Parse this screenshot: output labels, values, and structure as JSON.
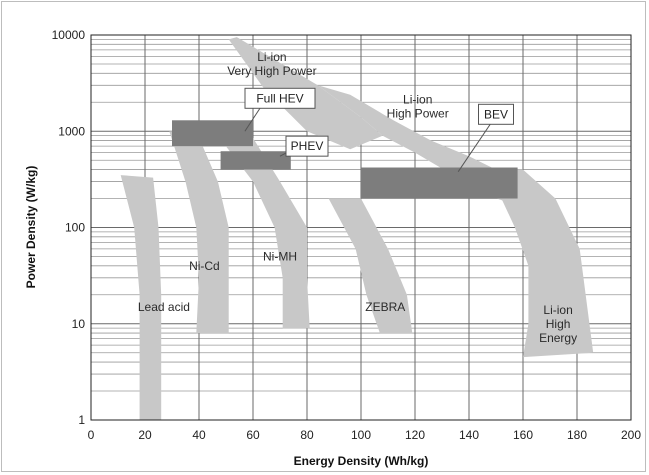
{
  "chart_data": {
    "type": "area",
    "xlabel": "Energy Density (Wh/kg)",
    "ylabel": "Power Density (W/kg)",
    "xlim": [
      0,
      200
    ],
    "ylim": [
      1,
      10000
    ],
    "yscale": "log",
    "grid": true,
    "x_ticks": [
      "0",
      "20",
      "40",
      "60",
      "80",
      "100",
      "120",
      "140",
      "160",
      "180",
      "200"
    ],
    "y_ticks": [
      "1",
      "10",
      "100",
      "1000",
      "10000"
    ],
    "regions": [
      {
        "name": "lead-acid",
        "label_lines": [
          "Lead acid"
        ],
        "label_at": [
          27,
          15
        ],
        "fill": "#c8c8c8",
        "polygon": [
          [
            11,
            350
          ],
          [
            23,
            330
          ],
          [
            25,
            100
          ],
          [
            26,
            20
          ],
          [
            26,
            1
          ],
          [
            18,
            1
          ],
          [
            18,
            20
          ],
          [
            16,
            100
          ],
          [
            11,
            350
          ]
        ]
      },
      {
        "name": "ni-cd",
        "label_lines": [
          "Ni-Cd"
        ],
        "label_at": [
          42,
          40
        ],
        "fill": "#c8c8c8",
        "polygon": [
          [
            29,
            1000
          ],
          [
            39,
            1000
          ],
          [
            47,
            300
          ],
          [
            51,
            100
          ],
          [
            51,
            30
          ],
          [
            51,
            8
          ],
          [
            39,
            8
          ],
          [
            40,
            30
          ],
          [
            39,
            100
          ],
          [
            35,
            300
          ],
          [
            29,
            1000
          ]
        ]
      },
      {
        "name": "ni-mh",
        "label_lines": [
          "Ni-MH"
        ],
        "label_at": [
          70,
          50
        ],
        "fill": "#c8c8c8",
        "polygon": [
          [
            47,
            900
          ],
          [
            60,
            850
          ],
          [
            70,
            300
          ],
          [
            80,
            100
          ],
          [
            80,
            30
          ],
          [
            81,
            9
          ],
          [
            71,
            9
          ],
          [
            71,
            30
          ],
          [
            68,
            100
          ],
          [
            60,
            300
          ],
          [
            47,
            900
          ]
        ]
      },
      {
        "name": "zebra",
        "label_lines": [
          "ZEBRA"
        ],
        "label_at": [
          109,
          15
        ],
        "fill": "#c8c8c8",
        "polygon": [
          [
            88,
            200
          ],
          [
            100,
            200
          ],
          [
            110,
            60
          ],
          [
            117,
            20
          ],
          [
            119,
            8
          ],
          [
            107,
            8
          ],
          [
            102,
            20
          ],
          [
            98,
            60
          ],
          [
            88,
            200
          ]
        ]
      },
      {
        "name": "li-ion-very-high-power",
        "label_lines": [
          "Li-ion",
          "Very High Power"
        ],
        "label_at": [
          67,
          5000
        ],
        "fill": "#c8c8c8",
        "polygon": [
          [
            51,
            9000
          ],
          [
            54,
            9500
          ],
          [
            84,
            3000
          ],
          [
            100,
            1400
          ],
          [
            108,
            900
          ],
          [
            96,
            650
          ],
          [
            80,
            1000
          ],
          [
            64,
            2800
          ],
          [
            51,
            9000
          ]
        ]
      },
      {
        "name": "li-ion-high-power",
        "label_lines": [
          "Li-ion",
          "High Power"
        ],
        "label_at": [
          121,
          1800
        ],
        "fill": "#c8c8c8",
        "polygon": [
          [
            84,
            3000
          ],
          [
            100,
            1400
          ],
          [
            108,
            900
          ],
          [
            120,
            600
          ],
          [
            132,
            380
          ],
          [
            146,
            220
          ],
          [
            155,
            180
          ],
          [
            160,
            260
          ],
          [
            150,
            400
          ],
          [
            140,
            550
          ],
          [
            126,
            800
          ],
          [
            112,
            1300
          ],
          [
            96,
            2400
          ],
          [
            84,
            3000
          ]
        ]
      },
      {
        "name": "li-ion-high-energy",
        "label_lines": [
          "Li-ion",
          "High",
          "Energy"
        ],
        "label_at": [
          173,
          10
        ],
        "fill": "#c8c8c8",
        "polygon": [
          [
            146,
            400
          ],
          [
            160,
            400
          ],
          [
            172,
            200
          ],
          [
            181,
            60
          ],
          [
            186,
            5
          ],
          [
            160,
            4.5
          ],
          [
            162,
            10
          ],
          [
            162,
            40
          ],
          [
            157,
            100
          ],
          [
            152,
            200
          ],
          [
            146,
            400
          ]
        ]
      }
    ],
    "vehicle_zones": [
      {
        "name": "full-hev",
        "label": "Full HEV",
        "x": [
          30,
          60
        ],
        "y": [
          700,
          1300
        ],
        "fill": "#7d7d7d",
        "callout_at": [
          70,
          2200
        ],
        "leader": [
          [
            57,
            1000
          ],
          [
            65,
            2200
          ]
        ]
      },
      {
        "name": "phev",
        "label": "PHEV",
        "x": [
          48,
          74
        ],
        "y": [
          400,
          620
        ],
        "fill": "#7d7d7d",
        "callout_at": [
          80,
          700
        ],
        "leader": [
          [
            70,
            550
          ],
          [
            77,
            700
          ]
        ]
      },
      {
        "name": "bev",
        "label": "BEV",
        "x": [
          100,
          158
        ],
        "y": [
          200,
          420
        ],
        "fill": "#7d7d7d",
        "callout_at": [
          150,
          1500
        ],
        "leader": [
          [
            136,
            380
          ],
          [
            150,
            1450
          ]
        ]
      }
    ]
  }
}
